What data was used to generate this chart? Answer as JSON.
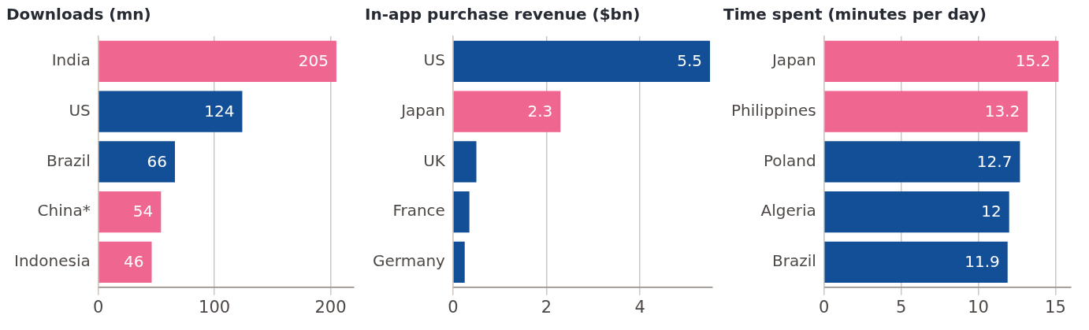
{
  "chart_data": [
    {
      "type": "bar",
      "orientation": "horizontal",
      "title": "Downloads (mn)",
      "categories": [
        "India",
        "US",
        "Brazil",
        "China*",
        "Indonesia"
      ],
      "values": [
        205,
        124,
        66,
        54,
        46
      ],
      "colors": [
        "#ef6690",
        "#124f96",
        "#124f96",
        "#ef6690",
        "#ef6690"
      ],
      "xlim": [
        0,
        220
      ],
      "xticks": [
        0,
        100,
        200
      ],
      "grid": "x",
      "data_labels": true
    },
    {
      "type": "bar",
      "orientation": "horizontal",
      "title": "In-app purchase revenue ($bn)",
      "categories": [
        "US",
        "Japan",
        "UK",
        "France",
        "Germany"
      ],
      "values": [
        5.5,
        2.3,
        0.5,
        0.35,
        0.25
      ],
      "colors": [
        "#124f96",
        "#ef6690",
        "#124f96",
        "#124f96",
        "#124f96"
      ],
      "value_labels": [
        "5.5",
        "2.3",
        null,
        null,
        null
      ],
      "xlim": [
        0,
        5.55
      ],
      "xticks": [
        0,
        2,
        4
      ],
      "grid": "x"
    },
    {
      "type": "bar",
      "orientation": "horizontal",
      "title": "Time spent (minutes per day)",
      "categories": [
        "Japan",
        "Philippines",
        "Poland",
        "Algeria",
        "Brazil"
      ],
      "values": [
        15.2,
        13.2,
        12.7,
        12,
        11.9
      ],
      "colors": [
        "#ef6690",
        "#ef6690",
        "#124f96",
        "#124f96",
        "#124f96"
      ],
      "xlim": [
        0,
        16
      ],
      "xticks": [
        0,
        5,
        10,
        15
      ],
      "grid": "x",
      "data_labels": true
    }
  ]
}
